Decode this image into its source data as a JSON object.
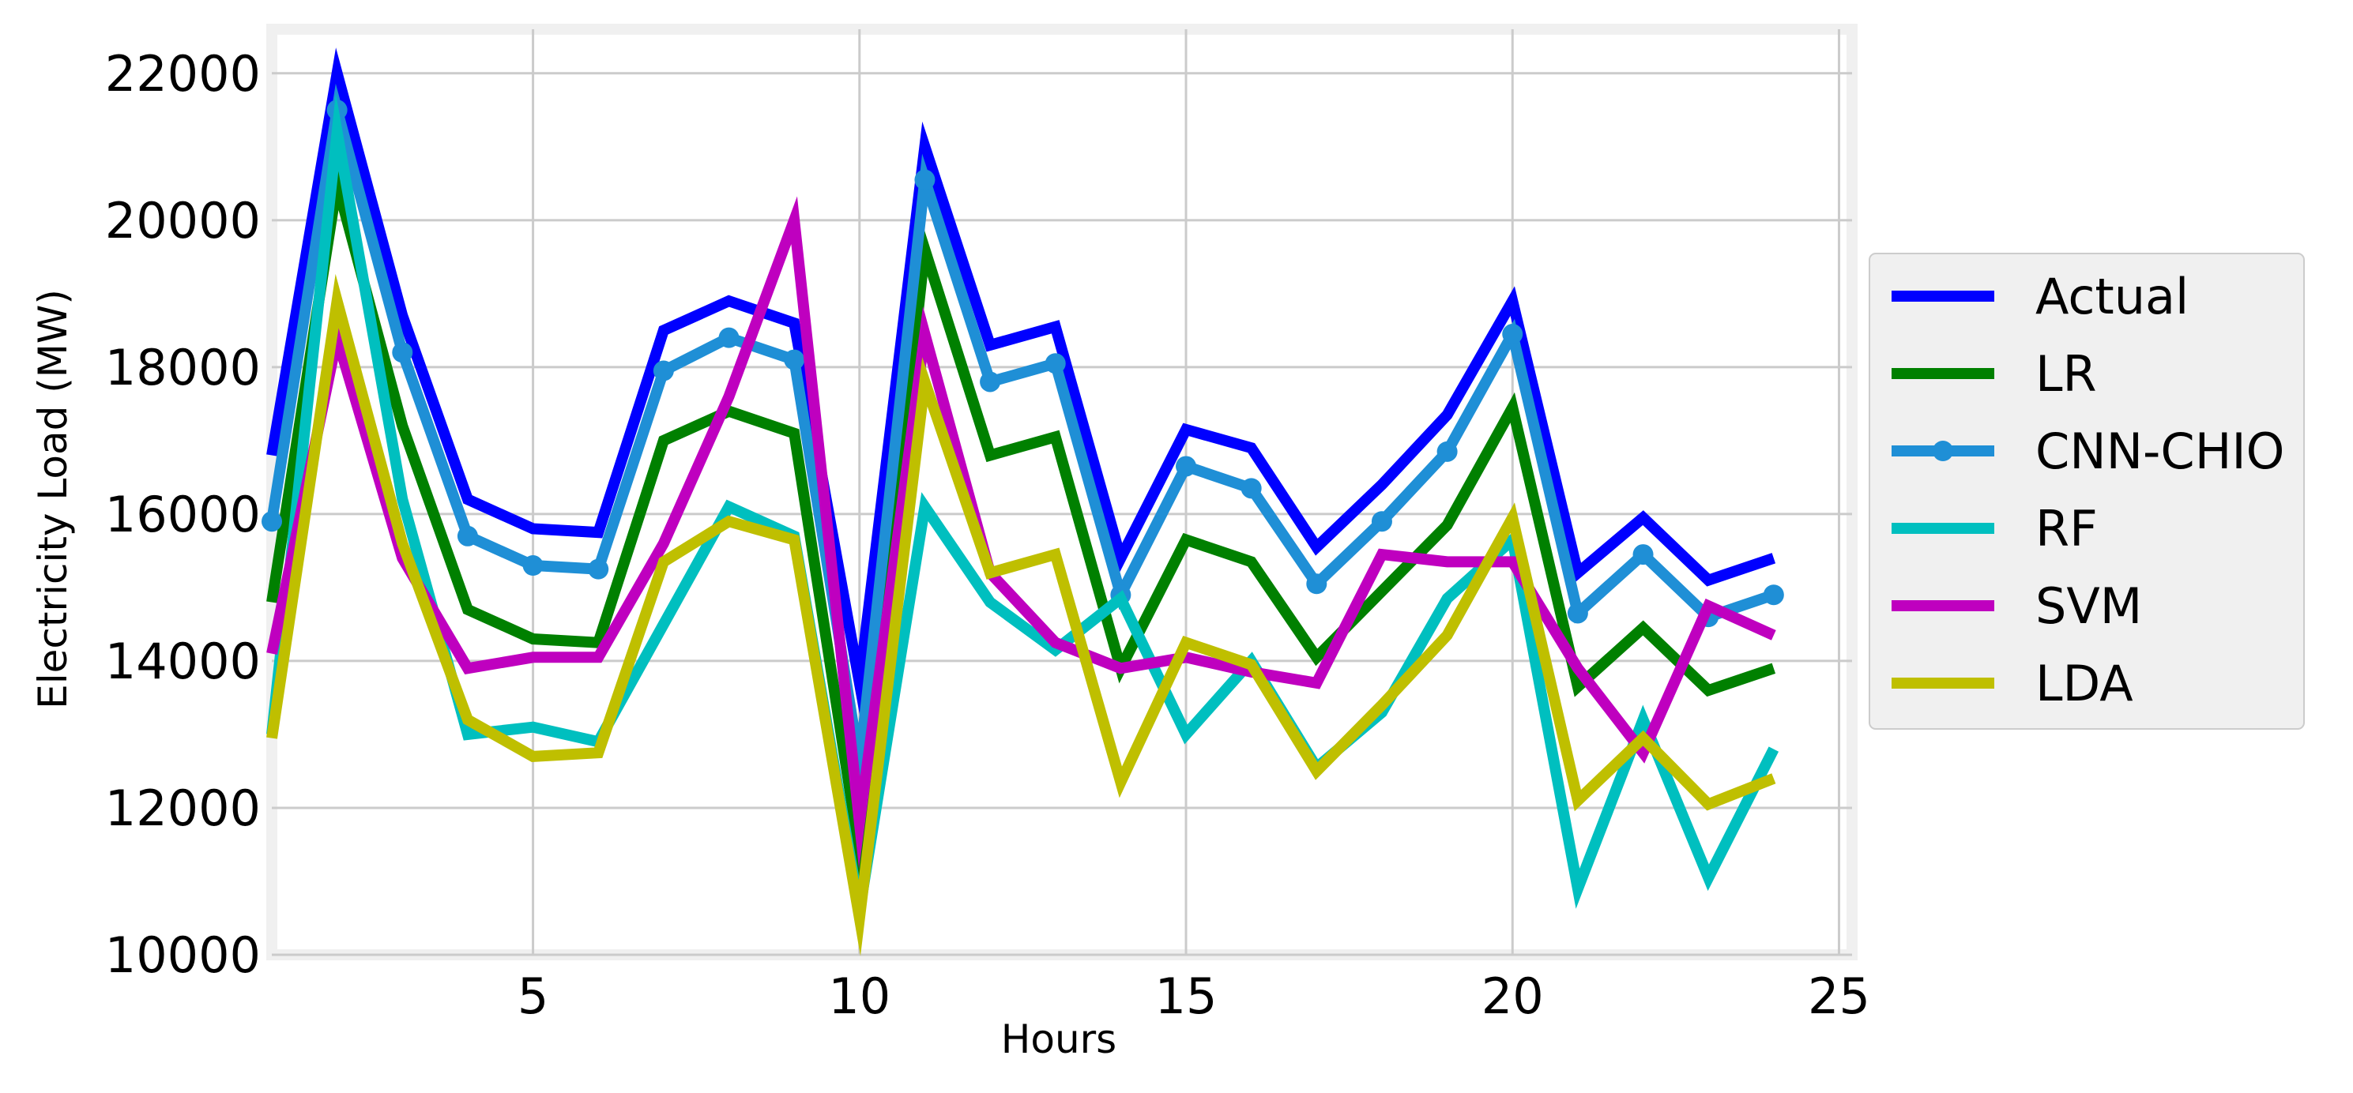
{
  "chart_data": {
    "type": "line",
    "title": "",
    "xlabel": "Hours",
    "ylabel": "Electricity Load (MW)",
    "xlim": [
      1,
      25.2
    ],
    "ylim": [
      10000,
      22600
    ],
    "x_ticks": [
      5,
      10,
      15,
      20,
      25
    ],
    "y_ticks": [
      10000,
      12000,
      14000,
      16000,
      18000,
      20000,
      22000
    ],
    "grid": true,
    "legend_position": "center-right outside",
    "x": [
      1,
      2,
      3,
      4,
      5,
      6,
      7,
      8,
      9,
      10,
      11,
      12,
      13,
      14,
      15,
      16,
      17,
      18,
      19,
      20,
      21,
      22,
      23,
      24
    ],
    "series": [
      {
        "name": "Actual",
        "color": "#0000ff",
        "marker": false,
        "values": [
          16800,
          22000,
          18700,
          16200,
          15800,
          15750,
          18500,
          18900,
          18600,
          13700,
          21000,
          18300,
          18550,
          15400,
          17150,
          16900,
          15550,
          16400,
          17350,
          18900,
          15200,
          15950,
          15100,
          15400
        ]
      },
      {
        "name": "LR",
        "color": "#008000",
        "marker": false,
        "values": [
          14800,
          20500,
          17200,
          14700,
          14300,
          14250,
          17000,
          17400,
          17100,
          11400,
          19600,
          16800,
          17050,
          13900,
          15650,
          15350,
          14050,
          14950,
          15850,
          17450,
          13650,
          14450,
          13600,
          13900
        ]
      },
      {
        "name": "CNN-CHIO",
        "color": "#1f8fd6",
        "marker": true,
        "values": [
          15900,
          21500,
          18200,
          15700,
          15300,
          15250,
          17950,
          18400,
          18100,
          12600,
          20550,
          17800,
          18050,
          14900,
          16650,
          16350,
          15050,
          15900,
          16850,
          18450,
          14650,
          15450,
          14600,
          14900
        ]
      },
      {
        "name": "RF",
        "color": "#00bfbf",
        "marker": false,
        "values": [
          13000,
          21200,
          16200,
          13000,
          13100,
          12900,
          14500,
          16100,
          15700,
          10600,
          16100,
          14800,
          14150,
          14850,
          13000,
          14000,
          12550,
          13300,
          14850,
          15650,
          10900,
          13200,
          11050,
          12800
        ]
      },
      {
        "name": "SVM",
        "color": "#bf00bf",
        "marker": false,
        "values": [
          14100,
          18400,
          15400,
          13900,
          14050,
          14050,
          15600,
          17600,
          20000,
          11800,
          18450,
          15200,
          14250,
          13900,
          14050,
          13850,
          13700,
          15450,
          15350,
          15350,
          13900,
          12750,
          14750,
          14350
        ]
      },
      {
        "name": "LDA",
        "color": "#bfbf00",
        "marker": false,
        "values": [
          12950,
          18900,
          15600,
          13200,
          12700,
          12750,
          15350,
          15900,
          15650,
          10500,
          17800,
          15200,
          15450,
          12350,
          14250,
          13950,
          12500,
          13400,
          14350,
          15950,
          12100,
          12950,
          12050,
          12400
        ]
      }
    ]
  }
}
